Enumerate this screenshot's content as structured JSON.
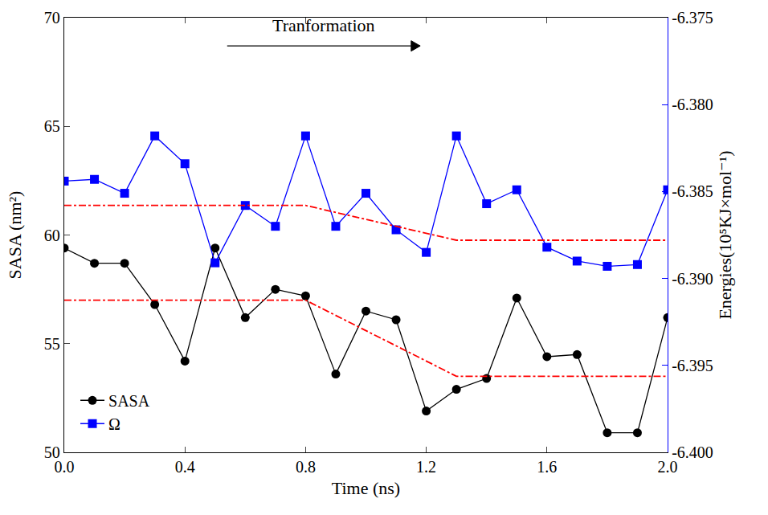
{
  "chart_data": {
    "type": "line",
    "x_label": "Time (ns)",
    "y_label": "SASA (nm²)",
    "y2_label": "Energies(10⁵KJ×mol⁻¹)",
    "annotations": [
      "Tranformation"
    ],
    "x": [
      0,
      0.1,
      0.2,
      0.3,
      0.4,
      0.5,
      0.6,
      0.7,
      0.8,
      0.9,
      1.0,
      1.1,
      1.2,
      1.3,
      1.4,
      1.5,
      1.6,
      1.7,
      1.8,
      1.9,
      2.0
    ],
    "xlim": [
      0,
      2
    ],
    "xticks": [
      {
        "value": 0,
        "label": "0.0"
      },
      0.4,
      0.8,
      1.2,
      1.6,
      {
        "value": 2,
        "label": "2.0"
      }
    ],
    "ylim": [
      50,
      70
    ],
    "yticks": [
      50,
      55,
      60,
      65,
      70
    ],
    "y2lim": [
      -6.4,
      -6.375
    ],
    "y2ticks": [
      -6.375,
      {
        "value": -6.38,
        "label": "-6.380"
      },
      -6.385,
      {
        "value": -6.39,
        "label": "-6.390"
      },
      -6.395,
      {
        "value": -6.4,
        "label": "-6.400"
      }
    ],
    "legend": "lower left",
    "series": [
      {
        "name": "SASA",
        "color": "#000000",
        "marker": "circle",
        "values": [
          59.4,
          58.7,
          58.7,
          56.8,
          54.2,
          59.4,
          56.2,
          57.5,
          57.2,
          53.6,
          56.5,
          56.1,
          51.9,
          52.9,
          53.4,
          57.1,
          54.4,
          54.5,
          50.9,
          50.9,
          56.2
        ]
      },
      {
        "name": "Ω",
        "color": "#0000ff",
        "marker": "square",
        "axis": "y2",
        "values": [
          -6.3844,
          -6.3843,
          -6.3851,
          -6.3818,
          -6.3834,
          -6.3891,
          -6.3858,
          -6.387,
          -6.3818,
          -6.387,
          -6.3851,
          -6.3872,
          -6.3885,
          -6.3818,
          -6.3857,
          -6.3849,
          -6.3882,
          -6.389,
          -6.3893,
          -6.3892,
          -6.3849
        ]
      },
      {
        "color": "#ff0000",
        "line_style": "dashdot",
        "marker": "none",
        "x": [
          0,
          0.8,
          1.3,
          2.0
        ],
        "values": [
          57,
          57,
          53.5,
          53.5
        ]
      },
      {
        "color": "#ff0000",
        "line_style": "dashdot",
        "marker": "none",
        "axis": "y2",
        "x": [
          0,
          0.8,
          1.3,
          2.0
        ],
        "values": [
          -6.3858,
          -6.3858,
          -6.3878,
          -6.3878
        ]
      }
    ]
  }
}
